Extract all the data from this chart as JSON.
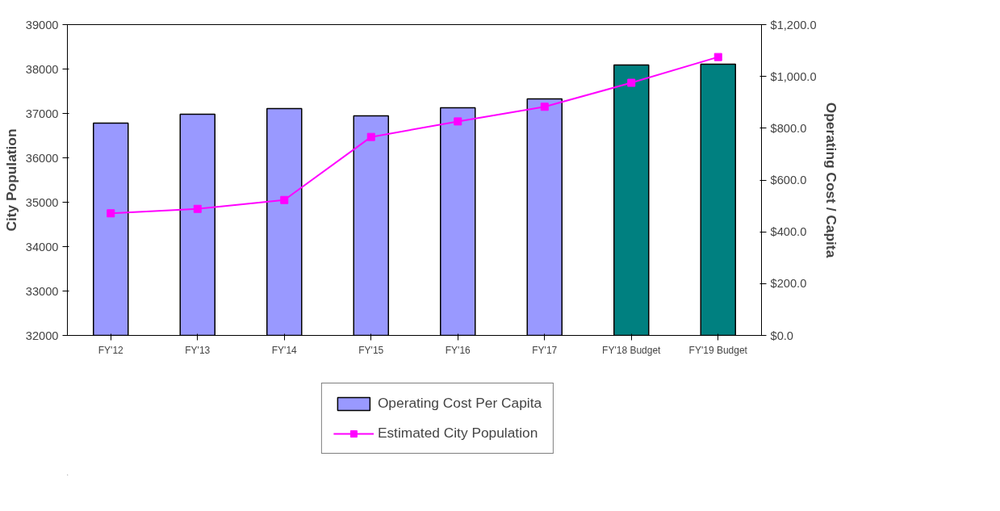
{
  "chart_data": {
    "type": "bar",
    "categories": [
      "FY'12",
      "FY'13",
      "FY'14",
      "FY'15",
      "FY'16",
      "FY'17",
      "FY'18 Budget",
      "FY'19 Budget"
    ],
    "ylabel": "City Population",
    "y2label": "Operating Cost / Capita",
    "ylim": [
      32000,
      39000
    ],
    "yticks": [
      32000,
      33000,
      34000,
      35000,
      36000,
      37000,
      38000,
      39000
    ],
    "y2lim": [
      0,
      1200
    ],
    "y2ticks": [
      {
        "value": 0,
        "label": "$0.0"
      },
      {
        "value": 200,
        "label": "$200.0"
      },
      {
        "value": 400,
        "label": "$400.0"
      },
      {
        "value": 600,
        "label": "$600.0"
      },
      {
        "value": 800,
        "label": "$800.0"
      },
      {
        "value": 1000,
        "label": "$1,000.0"
      },
      {
        "value": 1200,
        "label": "$1,200.0"
      }
    ],
    "grid": false,
    "legend": "bottom",
    "series": [
      {
        "name": "Operating Cost Per Capita",
        "type": "bar",
        "axis": "y2",
        "colors": [
          "#9999ff",
          "#9999ff",
          "#9999ff",
          "#9999ff",
          "#9999ff",
          "#9999ff",
          "#008080",
          "#008080"
        ],
        "values": [
          820,
          854,
          876,
          848,
          879,
          913,
          1044,
          1047
        ]
      },
      {
        "name": "Estimated City Population",
        "type": "line",
        "color": "#ff00ff",
        "marker": "square",
        "line_style": "solid",
        "values": [
          34750,
          34850,
          35050,
          36470,
          36820,
          37150,
          37690,
          38270
        ]
      }
    ]
  }
}
